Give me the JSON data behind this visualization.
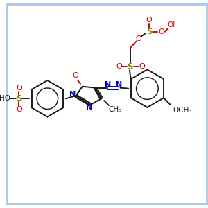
{
  "bg_color": "#ffffff",
  "border_color": "#a8c8e8",
  "bond_color": "#1a1a1a",
  "red_color": "#cc0000",
  "blue_color": "#0000bb",
  "olive_color": "#888800",
  "figsize": [
    3.0,
    3.0
  ],
  "dpi": 100,
  "xlim": [
    0,
    300
  ],
  "ylim": [
    0,
    300
  ]
}
